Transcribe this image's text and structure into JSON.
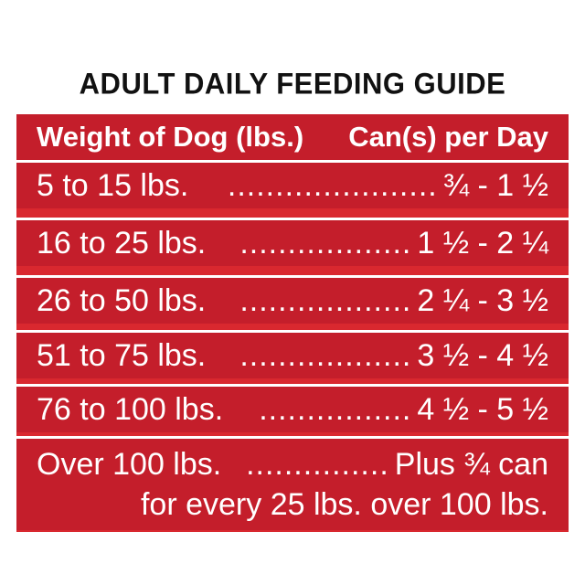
{
  "title": "ADULT DAILY FEEDING GUIDE",
  "header": {
    "weight_label": "Weight of Dog (lbs.)",
    "cans_label": "Can(s) per Day"
  },
  "rows": [
    {
      "weight": "5 to 15 lbs.",
      "dots": "......................",
      "cans": "¾ - 1 ½"
    },
    {
      "weight": "16 to 25 lbs.",
      "dots": "..................",
      "cans": "1 ½ - 2 ¼"
    },
    {
      "weight": "26 to 50 lbs.",
      "dots": "..................",
      "cans": "2 ¼ - 3 ½"
    },
    {
      "weight": "51 to 75 lbs.",
      "dots": "..................",
      "cans": "3 ½ - 4 ½"
    },
    {
      "weight": "76 to 100 lbs.",
      "dots": "................",
      "cans": "4 ½ - 5 ½"
    }
  ],
  "last_row": {
    "weight": "Over 100 lbs.",
    "dots": "...............",
    "cans": "Plus ¾ can",
    "note": "for every 25 lbs. over 100 lbs."
  },
  "colors": {
    "background": "#ffffff",
    "panel": "#c41e2b",
    "title_text": "#111111",
    "row_text": "#ffffff"
  }
}
